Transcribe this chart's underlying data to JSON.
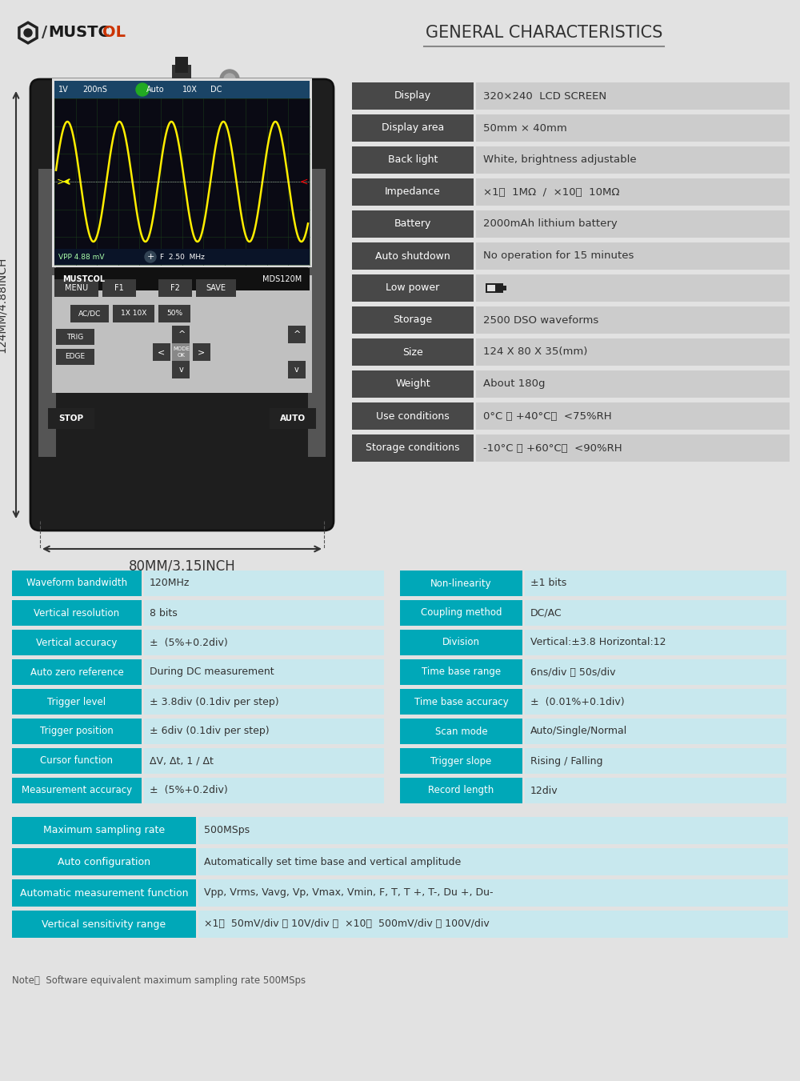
{
  "bg_color": "#e2e2e2",
  "dark_header_color": "#484848",
  "teal_color": "#00a8b8",
  "teal_light": "#c8e8ee",
  "title": "GENERAL CHARACTERISTICS",
  "general_rows": [
    [
      "Display",
      "320×240  LCD SCREEN"
    ],
    [
      "Display area",
      "50mm × 40mm"
    ],
    [
      "Back light",
      "White, brightness adjustable"
    ],
    [
      "Impedance",
      "×1：  1MΩ  /  ×10：  10MΩ"
    ],
    [
      "Battery",
      "2000mAh lithium battery"
    ],
    [
      "Auto shutdown",
      "No operation for 15 minutes"
    ],
    [
      "Low power",
      "■▷"
    ],
    [
      "Storage",
      "2500 DSO waveforms"
    ],
    [
      "Size",
      "124 X 80 X 35(mm)"
    ],
    [
      "Weight",
      "About 180g"
    ],
    [
      "Use conditions",
      "0°C ～ +40°C；  <75%RH"
    ],
    [
      "Storage conditions",
      "-10°C ～ +60°C；  <90%RH"
    ]
  ],
  "left_specs": [
    [
      "Waveform bandwidth",
      "120MHz"
    ],
    [
      "Vertical resolution",
      "8 bits"
    ],
    [
      "Vertical accuracy",
      "±  (5%+0.2div)"
    ],
    [
      "Auto zero reference",
      "During DC measurement"
    ],
    [
      "Trigger level",
      "± 3.8div (0.1div per step)"
    ],
    [
      "Trigger position",
      "± 6div (0.1div per step)"
    ],
    [
      "Cursor function",
      "ΔV, Δt, 1 / Δt"
    ],
    [
      "Measurement accuracy",
      "±  (5%+0.2div)"
    ]
  ],
  "right_specs": [
    [
      "Non-linearity",
      "±1 bits"
    ],
    [
      "Coupling method",
      "DC/AC"
    ],
    [
      "Division",
      "Vertical:±3.8 Horizontal:12"
    ],
    [
      "Time base range",
      "6ns/div ～ 50s/div"
    ],
    [
      "Time base accuracy",
      "±  (0.01%+0.1div)"
    ],
    [
      "Scan mode",
      "Auto/Single/Normal"
    ],
    [
      "Trigger slope",
      "Rising / Falling"
    ],
    [
      "Record length",
      "12div"
    ]
  ],
  "bottom_rows": [
    [
      "Maximum sampling rate",
      "500MSps"
    ],
    [
      "Auto configuration",
      "Automatically set time base and vertical amplitude"
    ],
    [
      "Automatic measurement function",
      "Vpp, Vrms, Vavg, Vp, Vmax, Vmin, F, T, T +, T-, Du +, Du-"
    ],
    [
      "Vertical sensitivity range",
      "×1：  50mV/div ～ 10V/div ；  ×10：  500mV/div ～ 100V/div"
    ]
  ],
  "note": "Note：  Software equivalent maximum sampling rate 500MSps",
  "dim_width": "80MM/3.15INCH",
  "dim_height": "124MM/4.88INCH"
}
